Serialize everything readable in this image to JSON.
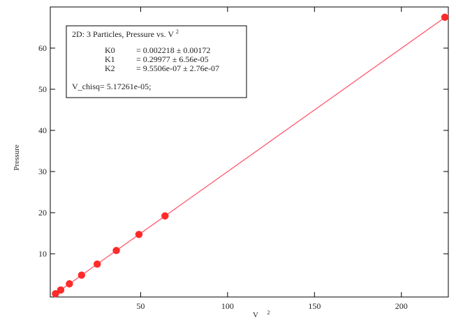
{
  "chart_data": {
    "type": "scatter",
    "title": "",
    "xlabel": "V",
    "xlabel_superscript": "2",
    "ylabel": "Pressure",
    "xlim": [
      -2,
      227
    ],
    "ylim": [
      -0.5,
      70
    ],
    "x_ticks": [
      50,
      100,
      150,
      200
    ],
    "y_ticks": [
      10,
      20,
      30,
      40,
      50,
      60
    ],
    "grid": false,
    "legend_placement": "top-left",
    "series": [
      {
        "points": [
          [
            1,
            0.3
          ],
          [
            4,
            1.2
          ],
          [
            9,
            2.7
          ],
          [
            16,
            4.8
          ],
          [
            25,
            7.5
          ],
          [
            36,
            10.8
          ],
          [
            49,
            14.7
          ],
          [
            64,
            19.2
          ],
          [
            225,
            67.5
          ]
        ],
        "color": "#ff2a2a"
      }
    ],
    "fit_line": {
      "x": [
        0,
        227
      ],
      "y": [
        0.0022,
        68.05
      ],
      "color": "#ff5a6e"
    },
    "annotation": {
      "heading": "2D:  3 Particles, Pressure vs. V",
      "heading_superscript": "2",
      "rows": [
        {
          "name": "K0",
          "value": "= 0.002218 ± 0.00172"
        },
        {
          "name": "K1",
          "value": "= 0.29977 ± 6.56e-05"
        },
        {
          "name": "K2",
          "value": "= 9.5506e-07 ± 2.76e-07"
        }
      ],
      "footer": "V_chisq= 5.17261e-05;"
    }
  }
}
